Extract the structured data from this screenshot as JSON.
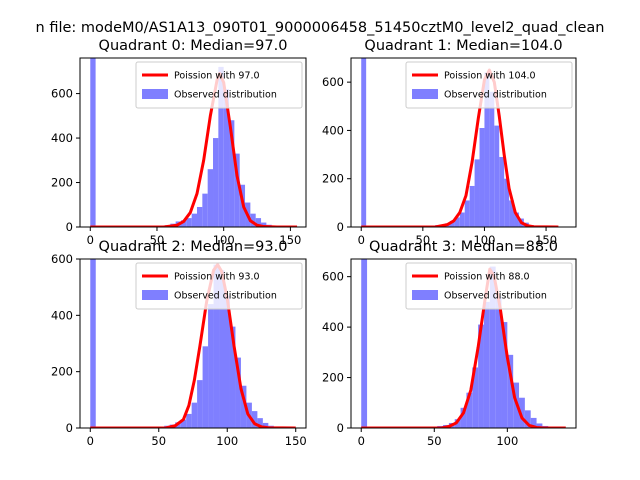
{
  "figure": {
    "suptitle": "n file: modeM0/AS1A13_090T01_9000006458_51450cztM0_level2_quad_clean"
  },
  "colors": {
    "hist": "#7f7fff",
    "poisson": "#ff0000",
    "axes": "#000000"
  },
  "chart_data": [
    {
      "type": "bar",
      "title": "Quadrant 0: Median=97.0",
      "xlabel": "",
      "ylabel": "",
      "xlim": [
        -7.7,
        161.7
      ],
      "ylim": [
        0,
        760
      ],
      "xticks": [
        0,
        50,
        100,
        150
      ],
      "yticks": [
        0,
        200,
        400,
        600
      ],
      "legend": {
        "position": "top-right",
        "entries": [
          "Poission with 97.0",
          "Observed distribution"
        ]
      },
      "series": [
        {
          "name": "Observed distribution",
          "kind": "histogram",
          "bin_width": 4,
          "bins": [
            [
              0,
              760
            ],
            [
              52,
              5
            ],
            [
              56,
              8
            ],
            [
              60,
              15
            ],
            [
              64,
              25
            ],
            [
              68,
              30
            ],
            [
              72,
              40
            ],
            [
              76,
              60
            ],
            [
              80,
              90
            ],
            [
              84,
              150
            ],
            [
              88,
              260
            ],
            [
              92,
              400
            ],
            [
              96,
              720
            ],
            [
              100,
              620
            ],
            [
              104,
              480
            ],
            [
              108,
              330
            ],
            [
              112,
              190
            ],
            [
              116,
              110
            ],
            [
              120,
              60
            ],
            [
              124,
              40
            ],
            [
              128,
              20
            ],
            [
              132,
              10
            ],
            [
              136,
              5
            ]
          ]
        },
        {
          "name": "Poission with 97.0",
          "kind": "line",
          "x": [
            0,
            40,
            55,
            65,
            70,
            75,
            80,
            85,
            90,
            95,
            97,
            100,
            105,
            110,
            115,
            120,
            125,
            130,
            140,
            155
          ],
          "y": [
            0,
            0,
            0,
            8,
            25,
            65,
            150,
            300,
            500,
            660,
            690,
            650,
            450,
            230,
            90,
            28,
            8,
            2,
            0,
            0
          ]
        }
      ]
    },
    {
      "type": "bar",
      "title": "Quadrant 1: Median=104.0",
      "xlabel": "",
      "ylabel": "",
      "xlim": [
        -8.3,
        174.3
      ],
      "ylim": [
        0,
        700
      ],
      "xticks": [
        0,
        50,
        100,
        150
      ],
      "yticks": [
        0,
        200,
        400,
        600
      ],
      "legend": {
        "position": "top-right",
        "entries": [
          "Poission with 104.0",
          "Observed distribution"
        ]
      },
      "series": [
        {
          "name": "Observed distribution",
          "kind": "histogram",
          "bin_width": 4,
          "bins": [
            [
              0,
              700
            ],
            [
              56,
              5
            ],
            [
              60,
              8
            ],
            [
              64,
              10
            ],
            [
              68,
              15
            ],
            [
              72,
              25
            ],
            [
              76,
              40
            ],
            [
              80,
              60
            ],
            [
              84,
              110
            ],
            [
              88,
              170
            ],
            [
              92,
              280
            ],
            [
              96,
              410
            ],
            [
              100,
              640
            ],
            [
              104,
              560
            ],
            [
              108,
              420
            ],
            [
              112,
              290
            ],
            [
              116,
              200
            ],
            [
              120,
              110
            ],
            [
              124,
              60
            ],
            [
              128,
              35
            ],
            [
              132,
              18
            ],
            [
              136,
              8
            ],
            [
              140,
              4
            ]
          ]
        },
        {
          "name": "Poission with 104.0",
          "kind": "line",
          "x": [
            0,
            40,
            60,
            70,
            75,
            80,
            85,
            90,
            95,
            100,
            104,
            108,
            112,
            116,
            120,
            125,
            130,
            135,
            140,
            160
          ],
          "y": [
            0,
            0,
            0,
            10,
            25,
            60,
            130,
            270,
            450,
            610,
            650,
            600,
            460,
            300,
            160,
            60,
            18,
            5,
            1,
            0
          ]
        }
      ]
    },
    {
      "type": "bar",
      "title": "Quadrant 2: Median=93.0",
      "xlabel": "",
      "ylabel": "",
      "xlim": [
        -7.5,
        157.5
      ],
      "ylim": [
        0,
        600
      ],
      "xticks": [
        0,
        50,
        100,
        150
      ],
      "yticks": [
        0,
        200,
        400,
        600
      ],
      "legend": {
        "position": "top-right",
        "entries": [
          "Poission with 93.0",
          "Observed distribution"
        ]
      },
      "series": [
        {
          "name": "Observed distribution",
          "kind": "histogram",
          "bin_width": 4,
          "bins": [
            [
              0,
              600
            ],
            [
              50,
              5
            ],
            [
              54,
              8
            ],
            [
              58,
              12
            ],
            [
              62,
              20
            ],
            [
              66,
              30
            ],
            [
              70,
              50
            ],
            [
              74,
              90
            ],
            [
              78,
              170
            ],
            [
              82,
              290
            ],
            [
              86,
              440
            ],
            [
              90,
              580
            ],
            [
              94,
              560
            ],
            [
              98,
              470
            ],
            [
              102,
              360
            ],
            [
              106,
              250
            ],
            [
              110,
              150
            ],
            [
              114,
              90
            ],
            [
              118,
              60
            ],
            [
              122,
              35
            ],
            [
              126,
              18
            ],
            [
              130,
              8
            ],
            [
              134,
              3
            ]
          ]
        },
        {
          "name": "Poission with 93.0",
          "kind": "line",
          "x": [
            0,
            40,
            55,
            62,
            68,
            72,
            76,
            80,
            85,
            90,
            93,
            96,
            100,
            105,
            110,
            115,
            120,
            125,
            130,
            150
          ],
          "y": [
            0,
            0,
            0,
            8,
            30,
            80,
            170,
            290,
            450,
            560,
            580,
            555,
            460,
            290,
            140,
            50,
            15,
            4,
            1,
            0
          ]
        }
      ]
    },
    {
      "type": "bar",
      "title": "Quadrant 3: Median=88.0",
      "xlabel": "",
      "ylabel": "",
      "xlim": [
        -7.0,
        147.0
      ],
      "ylim": [
        0,
        670
      ],
      "xticks": [
        0,
        50,
        100
      ],
      "yticks": [
        0,
        200,
        400,
        600
      ],
      "legend": {
        "position": "top-right",
        "entries": [
          "Poission with 88.0",
          "Observed distribution"
        ]
      },
      "series": [
        {
          "name": "Observed distribution",
          "kind": "histogram",
          "bin_width": 4,
          "bins": [
            [
              0,
              670
            ],
            [
              48,
              5
            ],
            [
              52,
              8
            ],
            [
              56,
              12
            ],
            [
              60,
              20
            ],
            [
              64,
              35
            ],
            [
              68,
              80
            ],
            [
              72,
              140
            ],
            [
              76,
              240
            ],
            [
              80,
              410
            ],
            [
              84,
              500
            ],
            [
              88,
              640
            ],
            [
              92,
              520
            ],
            [
              96,
              420
            ],
            [
              100,
              290
            ],
            [
              104,
              180
            ],
            [
              108,
              120
            ],
            [
              112,
              70
            ],
            [
              116,
              40
            ],
            [
              120,
              18
            ],
            [
              124,
              8
            ]
          ]
        },
        {
          "name": "Poission with 88.0",
          "kind": "line",
          "x": [
            0,
            35,
            55,
            60,
            65,
            70,
            75,
            80,
            85,
            88,
            91,
            95,
            100,
            105,
            110,
            115,
            120,
            125,
            140
          ],
          "y": [
            0,
            0,
            0,
            6,
            20,
            60,
            150,
            320,
            520,
            630,
            600,
            480,
            280,
            120,
            40,
            10,
            2,
            0,
            0
          ]
        }
      ]
    }
  ]
}
